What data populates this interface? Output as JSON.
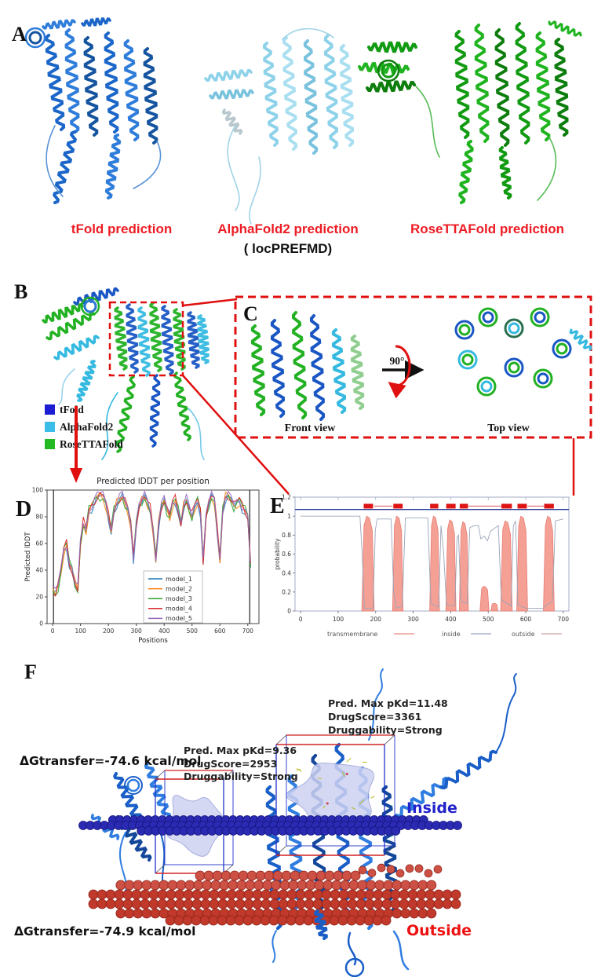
{
  "panelA": {
    "label": "A",
    "label_color": "#ed1c24",
    "predictions": [
      {
        "name": "tFold prediction",
        "color": "#1f6fd4"
      },
      {
        "name": "AlphaFold2 prediction",
        "subtitle": "( locPREFMD)",
        "color": "#8fd2e8"
      },
      {
        "name": "RoseTTAFold prediction",
        "color": "#15a615"
      }
    ]
  },
  "panelB": {
    "label": "B",
    "legend": [
      {
        "label": "tFold",
        "color": "#1c1cd2"
      },
      {
        "label": "AlphaFold2",
        "color": "#3bbde8"
      },
      {
        "label": "RoseTTAFold",
        "color": "#23b923"
      }
    ]
  },
  "panelC": {
    "label": "C",
    "front_view_label": "Front view",
    "rotation_label": "90°",
    "top_view_label": "Top view"
  },
  "panelD": {
    "label": "D"
  },
  "panelE": {
    "label": "E"
  },
  "panelF": {
    "label": "F",
    "pocket1_annotation": [
      "Pred. Max pKd=9.36",
      "DrugScore=2953",
      "Druggability=Strong"
    ],
    "pocket2_annotation": [
      "Pred. Max pKd=11.48",
      "DrugScore=3361",
      "Druggability=Strong"
    ],
    "dg_inner": "ΔGtransfer=-74.6 kcal/mol",
    "dg_outer": "ΔGtransfer=-74.9 kcal/mol",
    "inside_label": "Inside",
    "inside_color": "#2222cc",
    "outside_label": "Outside",
    "outside_color": "#ee1111"
  },
  "chart_data": [
    {
      "id": "plddt",
      "type": "line",
      "title": "Predicted lDDT per position",
      "xlabel": "Positions",
      "ylabel": "Predicted lDDT",
      "xlim": [
        -20,
        740
      ],
      "ylim": [
        0,
        100
      ],
      "xticks": [
        0,
        100,
        200,
        300,
        400,
        500,
        600,
        700
      ],
      "yticks": [
        0,
        20,
        40,
        60,
        80,
        100
      ],
      "x_step": 10,
      "base_values": [
        25,
        22,
        28,
        40,
        55,
        60,
        45,
        40,
        30,
        25,
        60,
        75,
        70,
        85,
        88,
        92,
        95,
        96,
        95,
        90,
        80,
        70,
        85,
        90,
        93,
        95,
        90,
        85,
        75,
        50,
        75,
        88,
        92,
        95,
        90,
        85,
        70,
        48,
        75,
        88,
        92,
        85,
        80,
        90,
        93,
        85,
        75,
        88,
        92,
        85,
        80,
        88,
        92,
        85,
        47,
        80,
        90,
        95,
        92,
        70,
        48,
        85,
        95,
        96,
        92,
        88,
        90,
        92,
        88,
        85,
        80,
        45
      ],
      "series": [
        {
          "name": "model_1",
          "color": "#1f77b4"
        },
        {
          "name": "model_2",
          "color": "#ff7f0e"
        },
        {
          "name": "model_3",
          "color": "#2ca02c"
        },
        {
          "name": "model_4",
          "color": "#d62728"
        },
        {
          "name": "model_5",
          "color": "#9467bd"
        }
      ],
      "series_note": "five model curves overlap closely around the base profile",
      "boundary_lines_x": [
        3,
        707
      ],
      "legend_position": "lower center"
    },
    {
      "id": "topology",
      "type": "area",
      "ylabel": "probability",
      "xlim": [
        -15,
        715
      ],
      "ylim": [
        0,
        1.2
      ],
      "xticks": [
        0,
        100,
        200,
        300,
        400,
        500,
        600,
        700
      ],
      "yticks": [
        0,
        0.2,
        0.4,
        0.6,
        0.8,
        1,
        1.2
      ],
      "transmembrane_peaks": [
        [
          163,
          196,
          1.0
        ],
        [
          245,
          273,
          1.0
        ],
        [
          344,
          370,
          1.0
        ],
        [
          387,
          414,
          0.96
        ],
        [
          423,
          447,
          0.94
        ],
        [
          478,
          502,
          0.26
        ],
        [
          507,
          526,
          0.08
        ],
        [
          533,
          564,
          0.95
        ],
        [
          576,
          605,
          1.0
        ],
        [
          647,
          676,
          1.0
        ]
      ],
      "topology_bars": [
        [
          168,
          193
        ],
        [
          247,
          272
        ],
        [
          345,
          367
        ],
        [
          388,
          413
        ],
        [
          424,
          446
        ],
        [
          535,
          563
        ],
        [
          578,
          603
        ],
        [
          649,
          675
        ]
      ],
      "outside_top_segments": [
        [
          196,
          245
        ],
        [
          447,
          534
        ],
        [
          605,
          648
        ]
      ],
      "inside_line_y": 1.07,
      "bar_y": 1.105,
      "membrane_curve": [
        [
          0,
          1
        ],
        [
          158,
          1
        ],
        [
          164,
          0.6
        ],
        [
          170,
          0.03
        ],
        [
          193,
          0.03
        ],
        [
          199,
          0.85
        ],
        [
          204,
          0.97
        ],
        [
          241,
          0.97
        ],
        [
          248,
          0.2
        ],
        [
          255,
          0.03
        ],
        [
          271,
          0.05
        ],
        [
          279,
          0.98
        ],
        [
          339,
          0.98
        ],
        [
          347,
          0.08
        ],
        [
          368,
          0.04
        ],
        [
          374,
          0.9
        ],
        [
          381,
          0.62
        ],
        [
          389,
          0.06
        ],
        [
          411,
          0.06
        ],
        [
          417,
          0.78
        ],
        [
          421,
          0.8
        ],
        [
          427,
          0.1
        ],
        [
          444,
          0.08
        ],
        [
          451,
          0.88
        ],
        [
          463,
          0.9
        ],
        [
          474,
          0.9
        ],
        [
          480,
          0.76
        ],
        [
          489,
          0.79
        ],
        [
          498,
          0.74
        ],
        [
          506,
          0.84
        ],
        [
          516,
          0.87
        ],
        [
          527,
          0.9
        ],
        [
          535,
          0.12
        ],
        [
          561,
          0.05
        ],
        [
          567,
          0.9
        ],
        [
          573,
          0.95
        ],
        [
          579,
          0.06
        ],
        [
          601,
          0.03
        ],
        [
          646,
          0.03
        ],
        [
          654,
          0.06
        ],
        [
          671,
          0.1
        ],
        [
          679,
          0.95
        ],
        [
          700,
          0.97
        ]
      ],
      "colors": {
        "transmembrane_fill": "#f59b90",
        "transmembrane_edge": "#e4766b",
        "inside": "#27398f",
        "outside": "#d96a6a",
        "membrane_curve": "#9aa4b8",
        "bar": "#dd1515"
      },
      "legend": [
        {
          "label": "transmembrane",
          "color": "#e8897d"
        },
        {
          "label": "inside",
          "color": "#98a5c4"
        },
        {
          "label": "outside",
          "color": "#c9a0a5"
        }
      ]
    }
  ]
}
